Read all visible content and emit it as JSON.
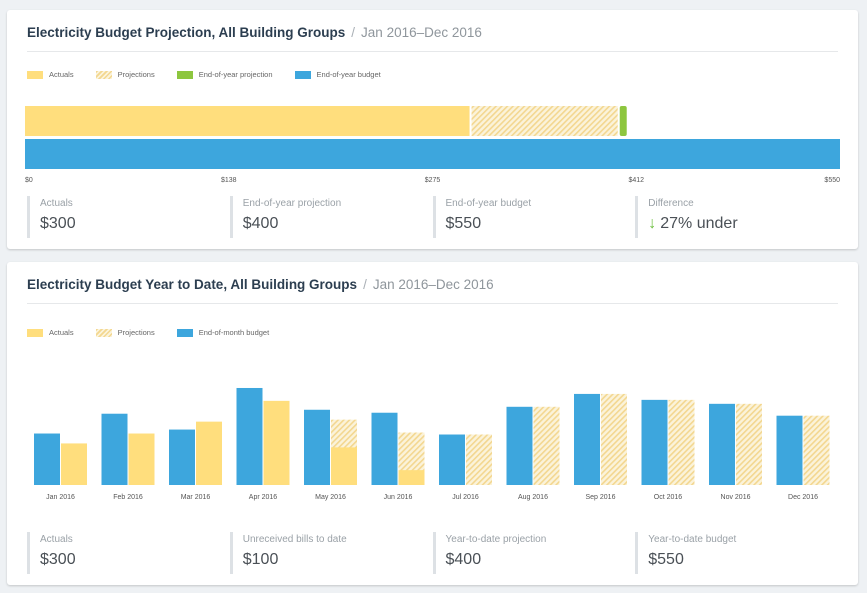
{
  "card1": {
    "title": "Electricity Budget Projection, All Building Groups",
    "separator": "/",
    "date_range": "Jan 2016–Dec 2016",
    "legend": {
      "actuals": "Actuals",
      "projections": "Projections",
      "eoy_projection": "End-of-year projection",
      "eoy_budget": "End-of-year budget"
    },
    "stats": [
      {
        "label": "Actuals",
        "value": "$300"
      },
      {
        "label": "End-of-year projection",
        "value": "$400"
      },
      {
        "label": "End-of-year budget",
        "value": "$550"
      },
      {
        "label": "Difference",
        "value": "27% under",
        "icon": "arrow-down-icon"
      }
    ]
  },
  "card2": {
    "title": "Electricity Budget Year to Date, All Building Groups",
    "separator": "/",
    "date_range": "Jan 2016–Dec 2016",
    "legend": {
      "actuals": "Actuals",
      "projections": "Projections",
      "eom_budget": "End-of-month budget"
    },
    "stats": [
      {
        "label": "Actuals",
        "value": "$300"
      },
      {
        "label": "Unreceived bills to date",
        "value": "$100"
      },
      {
        "label": "Year-to-date projection",
        "value": "$400"
      },
      {
        "label": "Year-to-date budget",
        "value": "$550"
      }
    ]
  },
  "colors": {
    "actual": "#ffde7d",
    "projection_hatch": "#f3d790",
    "projection_bg": "#fbf3da",
    "eoy_projection": "#8dc63f",
    "budget": "#3da6dd",
    "under_arrow": "#6cbf3f"
  },
  "chart_data": [
    {
      "type": "bar",
      "orientation": "horizontal",
      "xlim": [
        0,
        550
      ],
      "tick_labels": [
        "$0",
        "$138",
        "$275",
        "$412",
        "$550"
      ],
      "tick_values": [
        0,
        137.5,
        275,
        412.5,
        550
      ],
      "rows": [
        {
          "segments": [
            {
              "series": "Actuals",
              "value": 300
            },
            {
              "series": "Projections",
              "value": 100
            },
            {
              "series": "End-of-year projection",
              "value": 400,
              "marker": true
            }
          ]
        },
        {
          "segments": [
            {
              "series": "End-of-year budget",
              "value": 550
            }
          ]
        }
      ]
    },
    {
      "type": "bar",
      "categories": [
        "Jan 2016",
        "Feb 2016",
        "Mar 2016",
        "Apr 2016",
        "May 2016",
        "Jun 2016",
        "Jul 2016",
        "Aug 2016",
        "Sep 2016",
        "Oct 2016",
        "Nov 2016",
        "Dec 2016"
      ],
      "ylim": [
        0,
        100
      ],
      "series": [
        {
          "name": "End-of-month budget",
          "values": [
            52,
            72,
            56,
            98,
            76,
            73,
            51,
            79,
            92,
            86,
            82,
            70
          ]
        },
        {
          "name": "Actuals",
          "values": [
            42,
            52,
            64,
            85,
            38,
            15,
            0,
            0,
            0,
            0,
            0,
            0
          ]
        },
        {
          "name": "Projections",
          "values": [
            0,
            0,
            0,
            0,
            66,
            53,
            51,
            79,
            92,
            86,
            82,
            70
          ]
        }
      ]
    }
  ]
}
